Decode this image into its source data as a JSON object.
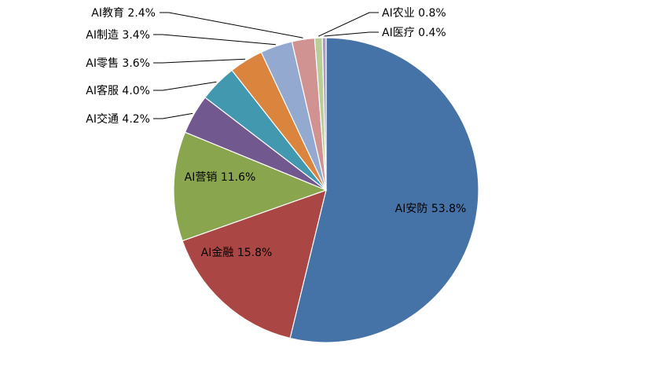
{
  "chart_data": {
    "type": "pie",
    "start_angle_deg": 0,
    "direction": "clockwise",
    "slices": [
      {
        "label": "AI安防 53.8%",
        "name": "AI安防",
        "value": 53.8,
        "color": "#4572A7"
      },
      {
        "label": "AI金融 15.8%",
        "name": "AI金融",
        "value": 15.8,
        "color": "#AA4643"
      },
      {
        "label": "AI营销 11.6%",
        "name": "AI营销",
        "value": 11.6,
        "color": "#89A54E"
      },
      {
        "label": "AI交通 4.2%",
        "name": "AI交通",
        "value": 4.2,
        "color": "#71588F"
      },
      {
        "label": "AI客服 4.0%",
        "name": "AI客服",
        "value": 4.0,
        "color": "#4198AF"
      },
      {
        "label": "AI零售 3.6%",
        "name": "AI零售",
        "value": 3.6,
        "color": "#DB843D"
      },
      {
        "label": "AI制造 3.4%",
        "name": "AI制造",
        "value": 3.4,
        "color": "#93A9CF"
      },
      {
        "label": "AI教育 2.4%",
        "name": "AI教育",
        "value": 2.4,
        "color": "#D19392"
      },
      {
        "label": "AI农业 0.8%",
        "name": "AI农业",
        "value": 0.8,
        "color": "#B9CD96"
      },
      {
        "label": "AI医疗 0.4%",
        "name": "AI医疗",
        "value": 0.4,
        "color": "#A99BBD"
      }
    ]
  }
}
